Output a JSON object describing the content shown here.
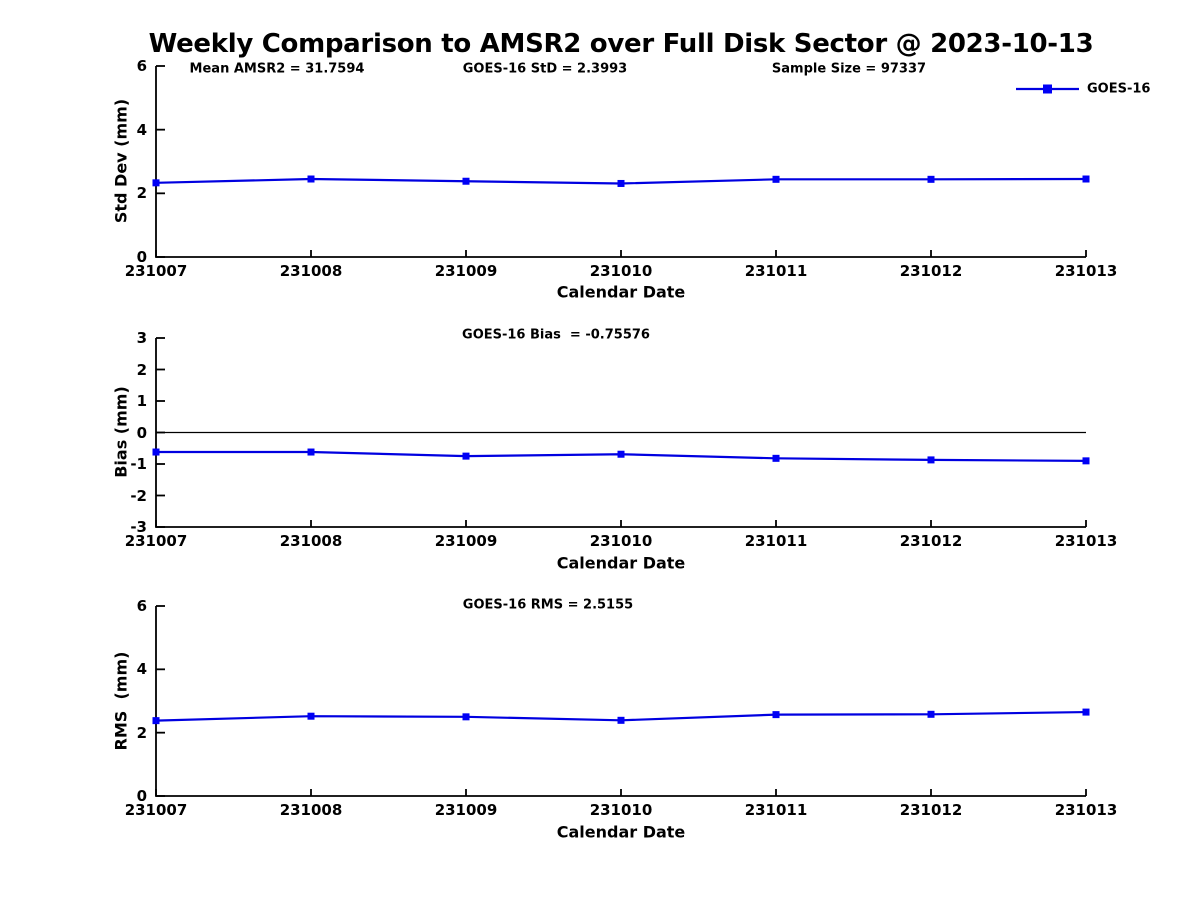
{
  "title": "Weekly Comparison to AMSR2 over Full Disk Sector @ 2023-10-13",
  "legend": {
    "label": "GOES-16",
    "position": "top-right"
  },
  "colors": {
    "series_line": "#0000E0",
    "series_marker": "#0000F5",
    "axis": "#000000",
    "zero_line": "#000000",
    "text": "#000000"
  },
  "chart_data": [
    {
      "type": "line",
      "annotations": [
        "Mean AMSR2 = 31.7594",
        "GOES-16 StD = 2.3993",
        "Sample Size = 97337"
      ],
      "categories": [
        "231007",
        "231008",
        "231009",
        "231010",
        "231011",
        "231012",
        "231013"
      ],
      "series": [
        {
          "name": "GOES-16",
          "values": [
            2.33,
            2.45,
            2.38,
            2.31,
            2.44,
            2.44,
            2.45
          ]
        }
      ],
      "xlabel": "Calendar Date",
      "ylabel": "Std Dev (mm)",
      "ylim": [
        0,
        6
      ],
      "yticks": [
        0,
        2,
        4,
        6
      ],
      "grid": false,
      "zero_line": false,
      "legend_visible": true,
      "marker": "square"
    },
    {
      "type": "line",
      "annotations": [
        "GOES-16 Bias  = -0.75576"
      ],
      "categories": [
        "231007",
        "231008",
        "231009",
        "231010",
        "231011",
        "231012",
        "231013"
      ],
      "series": [
        {
          "name": "GOES-16",
          "values": [
            -0.62,
            -0.62,
            -0.75,
            -0.69,
            -0.82,
            -0.87,
            -0.9
          ]
        }
      ],
      "xlabel": "Calendar Date",
      "ylabel": "Bias (mm)",
      "ylim": [
        -3,
        3
      ],
      "yticks": [
        -3,
        -2,
        -1,
        0,
        1,
        2,
        3
      ],
      "grid": false,
      "zero_line": true,
      "legend_visible": false,
      "marker": "square"
    },
    {
      "type": "line",
      "annotations": [
        "GOES-16 RMS = 2.5155"
      ],
      "categories": [
        "231007",
        "231008",
        "231009",
        "231010",
        "231011",
        "231012",
        "231013"
      ],
      "series": [
        {
          "name": "GOES-16",
          "values": [
            2.38,
            2.52,
            2.5,
            2.39,
            2.57,
            2.58,
            2.65
          ]
        }
      ],
      "xlabel": "Calendar Date",
      "ylabel": "RMS  (mm)",
      "ylim": [
        0,
        6
      ],
      "yticks": [
        0,
        2,
        4,
        6
      ],
      "grid": false,
      "zero_line": false,
      "legend_visible": false,
      "marker": "square"
    }
  ]
}
